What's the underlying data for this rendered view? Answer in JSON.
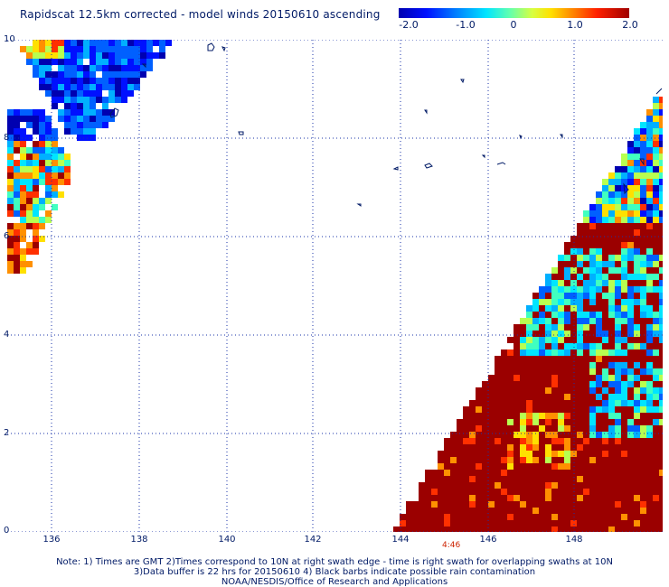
{
  "title": "Rapidscat 12.5km corrected - model winds 20150610 ascending",
  "colorbar": {
    "ticks": [
      "-2.0",
      "-1.0",
      "0",
      "1.0",
      "2.0"
    ],
    "range": [
      -2.0,
      2.0
    ]
  },
  "map": {
    "lon_range": [
      135,
      150
    ],
    "lat_range": [
      0,
      10
    ],
    "x_ticks": [
      "136",
      "138",
      "140",
      "142",
      "144",
      "146",
      "148"
    ],
    "y_ticks": [
      "0",
      "2",
      "4",
      "6",
      "8",
      "10"
    ],
    "grid": "dotted",
    "time_label": "4:46"
  },
  "colors": {
    "text": "#001a66",
    "coast": "#001a66",
    "grid": "#1a33aa",
    "max": "#9b0000"
  },
  "notes": [
    "Note: 1) Times are GMT 2)Times correspond to 10N at right swath edge - time is right swath for overlapping swaths at 10N",
    "3)Data buffer is 22 hrs for 20150610 4) Black barbs indicate possible rain contamination",
    "NOAA/NESDIS/Office of Research and Applications"
  ]
}
